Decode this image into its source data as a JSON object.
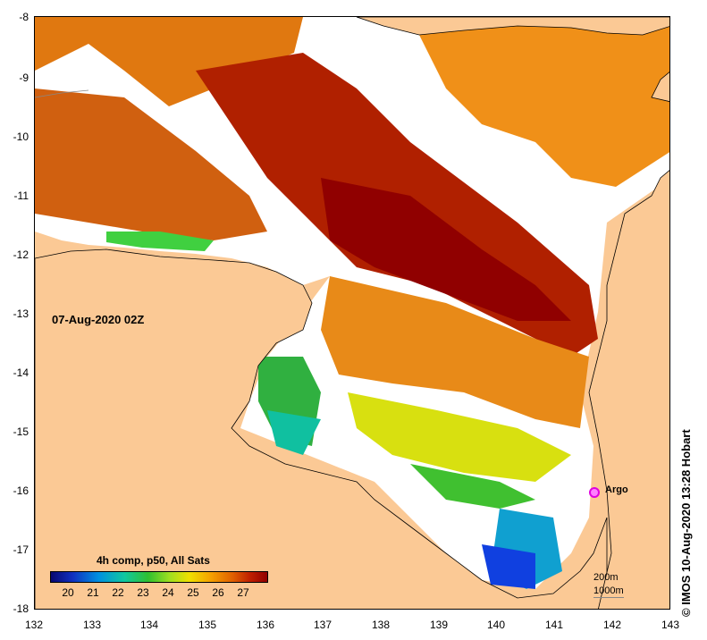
{
  "map": {
    "date_label": "07-Aug-2020 02Z",
    "colorbar_title": "4h comp, p50, All Sats",
    "colorbar_ticks": [
      "20",
      "21",
      "22",
      "23",
      "24",
      "25",
      "26",
      "27"
    ],
    "depth_labels": [
      "200m",
      "1000m"
    ],
    "marker": {
      "label": "Argo",
      "lon": 141.7,
      "lat": -16.0,
      "color": "#e000e0"
    },
    "credit": "© IMOS 10-Aug-2020 13:28 Hobart",
    "lat_ticks": [
      "-8",
      "-9",
      "-10",
      "-11",
      "-12",
      "-13",
      "-14",
      "-15",
      "-16",
      "-17",
      "-18"
    ],
    "lon_ticks": [
      "132",
      "133",
      "134",
      "135",
      "136",
      "137",
      "138",
      "139",
      "140",
      "141",
      "142",
      "143"
    ],
    "lon_range": [
      132,
      143
    ],
    "lat_range": [
      -18,
      -8
    ],
    "colors": {
      "land": "#fbc995",
      "no_data": "#ffffff",
      "warm": "#900000",
      "cool": "#1030c0"
    }
  }
}
